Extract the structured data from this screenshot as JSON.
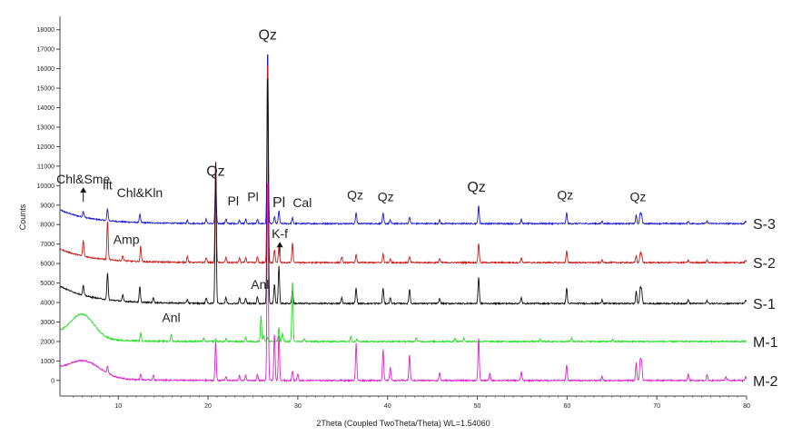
{
  "chart_data": {
    "type": "line",
    "title": "",
    "xlabel": "2Theta (Coupled TwoTheta/Theta) WL=1.54060",
    "ylabel": "Counts",
    "xlim": [
      3.5,
      80
    ],
    "ylim": [
      -800,
      18500
    ],
    "x_ticks": [
      10,
      20,
      30,
      40,
      50,
      60,
      70,
      80
    ],
    "x_tick_labels": [
      "10",
      "20",
      "30",
      "40",
      "50",
      "60",
      "70",
      "80"
    ],
    "y_ticks": [
      0,
      1000,
      2000,
      3000,
      4000,
      5000,
      6000,
      7000,
      8000,
      9000,
      10000,
      11000,
      12000,
      13000,
      14000,
      15000,
      16000,
      17000,
      18000
    ],
    "y_tick_labels": [
      "0",
      "1000",
      "2000",
      "3000",
      "4000",
      "5000",
      "6000",
      "7000",
      "8000",
      "9000",
      "10000",
      "11000",
      "12000",
      "13000",
      "14000",
      "15000",
      "16000",
      "17000",
      "18000"
    ],
    "grid": false,
    "legend": "series labels at right end",
    "series": [
      {
        "name": "S-3",
        "color": "#1a1acc",
        "baseline": 8050,
        "bg_start": 8750,
        "peaks": [
          [
            6.1,
            300
          ],
          [
            8.8,
            600
          ],
          [
            12.4,
            420
          ],
          [
            17.7,
            150
          ],
          [
            19.8,
            220
          ],
          [
            20.85,
            2300
          ],
          [
            22.0,
            250
          ],
          [
            23.5,
            200
          ],
          [
            24.2,
            220
          ],
          [
            25.5,
            200
          ],
          [
            26.64,
            9000
          ],
          [
            27.4,
            350
          ],
          [
            27.9,
            650
          ],
          [
            29.4,
            300
          ],
          [
            36.5,
            550
          ],
          [
            39.5,
            520
          ],
          [
            40.3,
            180
          ],
          [
            42.45,
            350
          ],
          [
            45.8,
            180
          ],
          [
            50.15,
            900
          ],
          [
            54.9,
            200
          ],
          [
            59.95,
            550
          ],
          [
            63.9,
            120
          ],
          [
            67.7,
            420
          ],
          [
            68.15,
            520
          ],
          [
            68.3,
            420
          ],
          [
            73.5,
            120
          ],
          [
            75.6,
            130
          ],
          [
            79.9,
            120
          ]
        ]
      },
      {
        "name": "S-2",
        "color": "#cc1a1a",
        "baseline": 6050,
        "bg_start": 6750,
        "peaks": [
          [
            6.1,
            800
          ],
          [
            8.8,
            2000
          ],
          [
            10.5,
            250
          ],
          [
            12.5,
            800
          ],
          [
            17.7,
            300
          ],
          [
            19.8,
            250
          ],
          [
            20.85,
            5200
          ],
          [
            22.0,
            250
          ],
          [
            23.5,
            250
          ],
          [
            24.2,
            250
          ],
          [
            25.5,
            300
          ],
          [
            26.64,
            10500
          ],
          [
            27.4,
            650
          ],
          [
            27.9,
            800
          ],
          [
            29.4,
            1000
          ],
          [
            34.9,
            300
          ],
          [
            36.5,
            400
          ],
          [
            39.5,
            450
          ],
          [
            40.3,
            200
          ],
          [
            42.45,
            300
          ],
          [
            45.8,
            200
          ],
          [
            50.15,
            1000
          ],
          [
            54.9,
            250
          ],
          [
            59.95,
            600
          ],
          [
            63.9,
            130
          ],
          [
            67.7,
            350
          ],
          [
            68.15,
            450
          ],
          [
            68.3,
            400
          ],
          [
            73.5,
            120
          ],
          [
            75.6,
            150
          ],
          [
            79.9,
            130
          ]
        ]
      },
      {
        "name": "S-1",
        "color": "#111111",
        "baseline": 3950,
        "bg_start": 4850,
        "peaks": [
          [
            6.1,
            500
          ],
          [
            8.8,
            1400
          ],
          [
            10.5,
            300
          ],
          [
            12.4,
            800
          ],
          [
            13.9,
            250
          ],
          [
            17.7,
            200
          ],
          [
            19.8,
            300
          ],
          [
            20.85,
            7300
          ],
          [
            22.0,
            300
          ],
          [
            23.5,
            300
          ],
          [
            24.2,
            300
          ],
          [
            25.5,
            350
          ],
          [
            26.64,
            12000
          ],
          [
            27.4,
            1000
          ],
          [
            27.9,
            1900
          ],
          [
            29.4,
            700
          ],
          [
            34.9,
            300
          ],
          [
            36.5,
            800
          ],
          [
            39.5,
            800
          ],
          [
            40.3,
            300
          ],
          [
            42.45,
            750
          ],
          [
            45.8,
            250
          ],
          [
            50.15,
            1350
          ],
          [
            54.9,
            300
          ],
          [
            59.95,
            800
          ],
          [
            63.9,
            200
          ],
          [
            67.7,
            650
          ],
          [
            68.15,
            750
          ],
          [
            68.3,
            700
          ],
          [
            73.5,
            200
          ],
          [
            75.6,
            150
          ],
          [
            79.9,
            150
          ]
        ]
      },
      {
        "name": "M-1",
        "color": "#22dd22",
        "baseline": 2000,
        "bg_start": 2400,
        "hump": [
          6.0,
          1.3,
          1200
        ],
        "peaks": [
          [
            12.5,
            400
          ],
          [
            15.9,
            350
          ],
          [
            19.5,
            150
          ],
          [
            20.85,
            100
          ],
          [
            22.0,
            150
          ],
          [
            24.2,
            200
          ],
          [
            25.9,
            1300
          ],
          [
            26.2,
            300
          ],
          [
            26.64,
            200
          ],
          [
            27.9,
            700
          ],
          [
            28.3,
            400
          ],
          [
            29.4,
            3100
          ],
          [
            30.7,
            150
          ],
          [
            35.9,
            250
          ],
          [
            36.6,
            150
          ],
          [
            43.2,
            200
          ],
          [
            47.5,
            150
          ],
          [
            48.5,
            200
          ],
          [
            57.0,
            100
          ],
          [
            60.5,
            200
          ],
          [
            65.1,
            100
          ]
        ]
      },
      {
        "name": "M-2",
        "color": "#dd22cc",
        "baseline": 0,
        "bg_start": 450,
        "hump": [
          6.2,
          1.8,
          800
        ],
        "peaks": [
          [
            8.8,
            350
          ],
          [
            12.5,
            300
          ],
          [
            13.9,
            250
          ],
          [
            20.85,
            2000
          ],
          [
            22.0,
            200
          ],
          [
            23.5,
            250
          ],
          [
            24.2,
            250
          ],
          [
            25.5,
            300
          ],
          [
            26.64,
            10500
          ],
          [
            27.4,
            2400
          ],
          [
            27.9,
            2300
          ],
          [
            29.4,
            500
          ],
          [
            30.0,
            350
          ],
          [
            36.5,
            1900
          ],
          [
            39.5,
            1600
          ],
          [
            40.3,
            700
          ],
          [
            42.45,
            1300
          ],
          [
            45.8,
            400
          ],
          [
            50.15,
            2200
          ],
          [
            51.4,
            350
          ],
          [
            54.9,
            450
          ],
          [
            59.95,
            800
          ],
          [
            63.9,
            200
          ],
          [
            67.7,
            900
          ],
          [
            68.15,
            1000
          ],
          [
            68.3,
            950
          ],
          [
            73.5,
            300
          ],
          [
            75.6,
            300
          ],
          [
            77.7,
            200
          ],
          [
            79.9,
            200
          ]
        ]
      }
    ],
    "annotations": [
      {
        "text": "Chl&Sme",
        "x": 6.1,
        "y": 10100,
        "arrow": true,
        "large": false
      },
      {
        "text": "Ilt",
        "x": 8.8,
        "y": 9800,
        "arrow": false,
        "large": false
      },
      {
        "text": "Chl&Kln",
        "x": 12.4,
        "y": 9400,
        "arrow": false,
        "large": false
      },
      {
        "text": "Qz",
        "x": 20.85,
        "y": 10500,
        "arrow": false,
        "large": true
      },
      {
        "text": "Pl",
        "x": 22.8,
        "y": 9000,
        "arrow": false,
        "large": false
      },
      {
        "text": "Pl",
        "x": 25.0,
        "y": 9200,
        "arrow": false,
        "large": false
      },
      {
        "text": "Qz",
        "x": 26.64,
        "y": 17500,
        "arrow": false,
        "large": true
      },
      {
        "text": "Pl",
        "x": 27.9,
        "y": 8900,
        "arrow": false,
        "large": true
      },
      {
        "text": "Cal",
        "x": 30.5,
        "y": 8900,
        "arrow": false,
        "large": false
      },
      {
        "text": "Qz",
        "x": 36.4,
        "y": 9300,
        "arrow": false,
        "large": false
      },
      {
        "text": "Qz",
        "x": 39.8,
        "y": 9200,
        "arrow": false,
        "large": false
      },
      {
        "text": "Qz",
        "x": 49.9,
        "y": 9700,
        "arrow": false,
        "large": true
      },
      {
        "text": "Qz",
        "x": 59.8,
        "y": 9300,
        "arrow": false,
        "large": false
      },
      {
        "text": "Qz",
        "x": 67.9,
        "y": 9200,
        "arrow": false,
        "large": false
      },
      {
        "text": "Amp",
        "x": 10.9,
        "y": 7000,
        "arrow": false,
        "large": false
      },
      {
        "text": "K-f",
        "x": 28.0,
        "y": 7300,
        "arrow": true,
        "large": false
      },
      {
        "text": "Anl",
        "x": 15.9,
        "y": 3000,
        "arrow": false,
        "large": false
      },
      {
        "text": "Anl",
        "x": 25.8,
        "y": 4700,
        "arrow": false,
        "large": false
      }
    ]
  }
}
